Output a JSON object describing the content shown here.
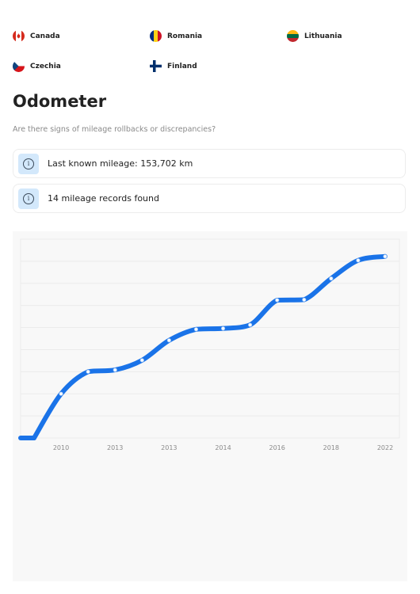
{
  "countries": [
    {
      "name": "Canada",
      "flag": "canada-flag-icon"
    },
    {
      "name": "Romania",
      "flag": "romania-flag-icon"
    },
    {
      "name": "Lithuania",
      "flag": "lithuania-flag-icon"
    },
    {
      "name": "Czechia",
      "flag": "czechia-flag-icon"
    },
    {
      "name": "Finland",
      "flag": "finland-flag-icon"
    }
  ],
  "odometer": {
    "title": "Odometer",
    "subtitle": "Are there signs of mileage rollbacks or discrepancies?",
    "info": [
      {
        "text": "Last known mileage: 153,702 km",
        "icon": "info-icon"
      },
      {
        "text": "14 mileage records found",
        "icon": "info-icon"
      }
    ]
  },
  "colors": {
    "line": "#1a73e8",
    "info_bg": "#d3e8fb",
    "chart_bg": "#f8f8f8"
  },
  "chart_data": {
    "type": "line",
    "x_tick_labels": [
      "2010",
      "2013",
      "2013",
      "2014",
      "2016",
      "2018",
      "2022"
    ],
    "series": [
      {
        "values": [
          0,
          10,
          15,
          15.4,
          17.6,
          22.1,
          24.6,
          24.8,
          25.6,
          31.2,
          31.3,
          36.1,
          40.2,
          41.1
        ]
      }
    ],
    "grid": true,
    "legend": "none"
  }
}
